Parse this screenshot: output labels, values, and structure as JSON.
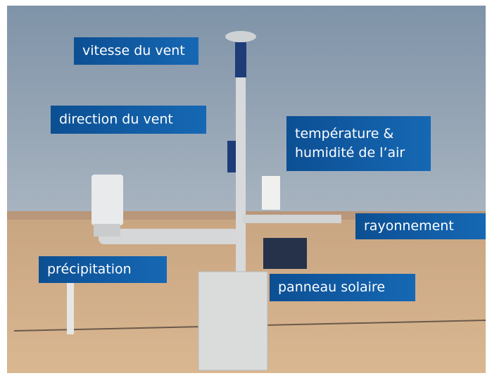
{
  "labels": [
    {
      "lines": [
        "vitesse du vent"
      ]
    },
    {
      "lines": [
        "direction du vent"
      ]
    },
    {
      "lines": [
        "température &",
        "humidité de l’air"
      ]
    },
    {
      "lines": [
        "rayonnement"
      ]
    },
    {
      "lines": [
        "précipitation"
      ]
    },
    {
      "lines": [
        "panneau solaire"
      ]
    }
  ]
}
